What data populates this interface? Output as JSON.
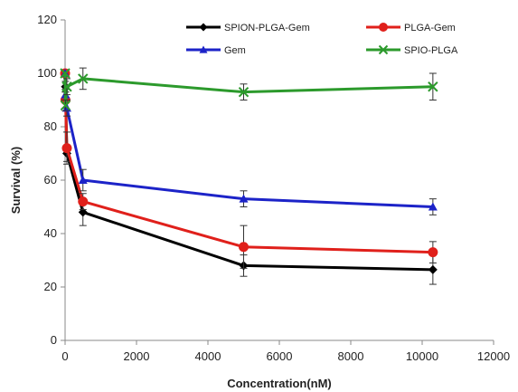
{
  "chart_data": {
    "type": "line",
    "title": "",
    "xlabel": "Concentration(nM)",
    "ylabel": "Survival (%)",
    "xlim": [
      0,
      12000
    ],
    "ylim": [
      0,
      120
    ],
    "xticks": [
      0,
      2000,
      4000,
      6000,
      8000,
      10000,
      12000
    ],
    "yticks": [
      0,
      20,
      40,
      60,
      80,
      100,
      120
    ],
    "grid": false,
    "legend_position": "top",
    "series": [
      {
        "name": "SPION-PLGA-Gem",
        "color": "#000000",
        "marker": "diamond",
        "points": [
          {
            "x": 0,
            "y": 100,
            "err": 0
          },
          {
            "x": 10,
            "y": 95,
            "err": 2
          },
          {
            "x": 50,
            "y": 70,
            "err": 3
          },
          {
            "x": 500,
            "y": 48,
            "err": 5
          },
          {
            "x": 5000,
            "y": 28,
            "err": 4
          },
          {
            "x": 10300,
            "y": 26.5,
            "err": 5.5
          }
        ]
      },
      {
        "name": "PLGA-Gem",
        "color": "#e0201b",
        "marker": "circle",
        "points": [
          {
            "x": 0,
            "y": 100,
            "err": 0
          },
          {
            "x": 10,
            "y": 90,
            "err": 3
          },
          {
            "x": 50,
            "y": 72,
            "err": 6
          },
          {
            "x": 500,
            "y": 52,
            "err": 3
          },
          {
            "x": 5000,
            "y": 35,
            "err": 8
          },
          {
            "x": 10300,
            "y": 33,
            "err": 4
          }
        ]
      },
      {
        "name": "Gem",
        "color": "#1c23c8",
        "marker": "triangle",
        "points": [
          {
            "x": 0,
            "y": 100,
            "err": 0
          },
          {
            "x": 10,
            "y": 92,
            "err": 2
          },
          {
            "x": 50,
            "y": 87,
            "err": 3
          },
          {
            "x": 500,
            "y": 60,
            "err": 4
          },
          {
            "x": 5000,
            "y": 53,
            "err": 3
          },
          {
            "x": 10300,
            "y": 50,
            "err": 3
          }
        ]
      },
      {
        "name": "SPIO-PLGA",
        "color": "#2c9a2c",
        "marker": "x",
        "points": [
          {
            "x": 0,
            "y": 100,
            "err": 0
          },
          {
            "x": 10,
            "y": 88,
            "err": 2
          },
          {
            "x": 50,
            "y": 95,
            "err": 3
          },
          {
            "x": 500,
            "y": 98,
            "err": 4
          },
          {
            "x": 5000,
            "y": 93,
            "err": 3
          },
          {
            "x": 10300,
            "y": 95,
            "err": 5
          }
        ]
      }
    ]
  }
}
